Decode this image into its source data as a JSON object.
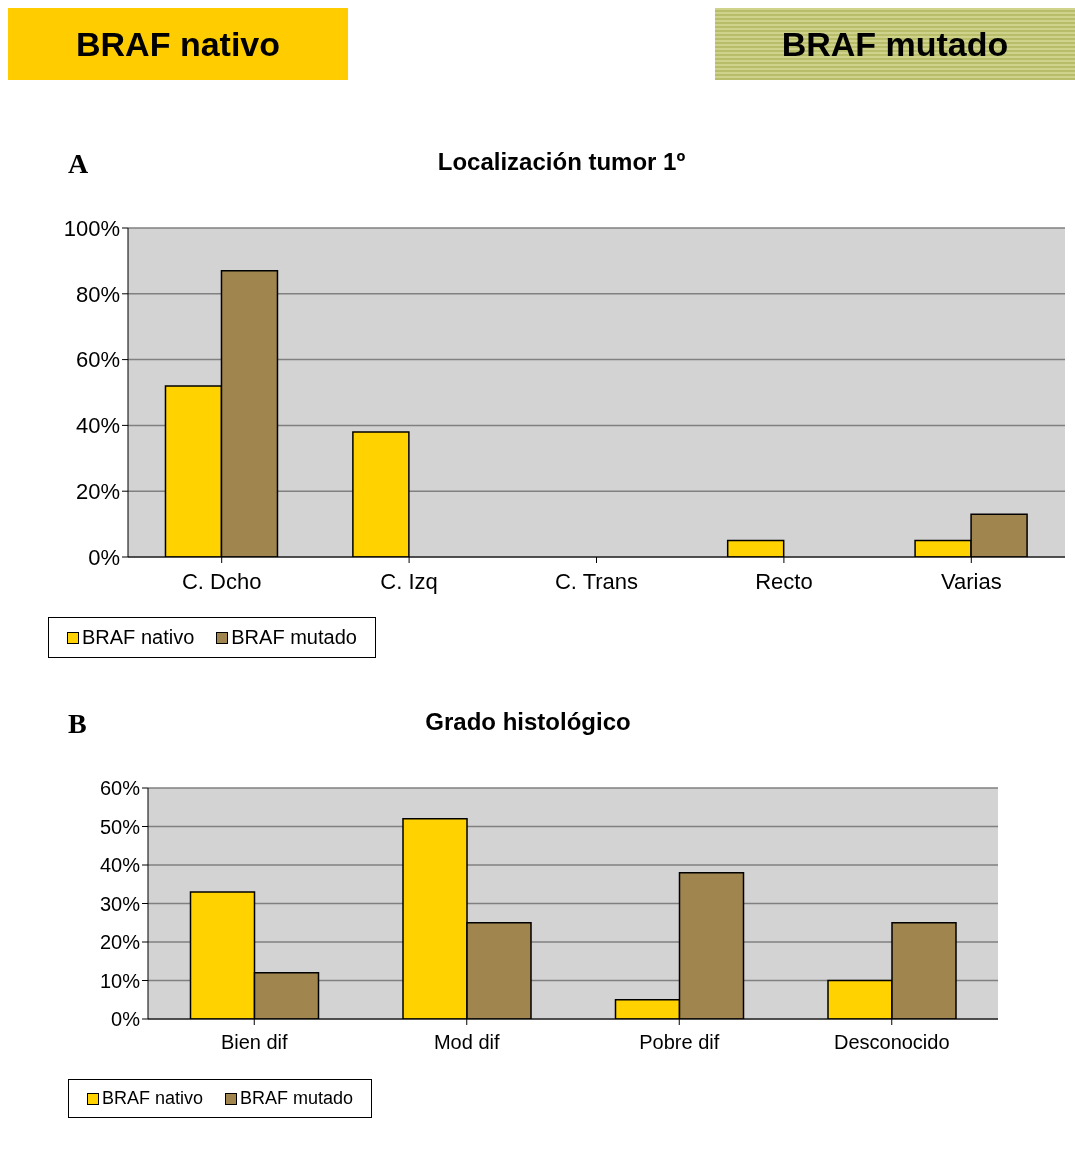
{
  "chart_data": [
    {
      "type": "bar",
      "title": "Localización tumor 1º",
      "categories": [
        "C. Dcho",
        "C. Izq",
        "C. Trans",
        "Recto",
        "Varias"
      ],
      "series": [
        {
          "name": "BRAF nativo",
          "color": "#ffd200",
          "values": [
            52,
            38,
            0,
            5,
            5
          ]
        },
        {
          "name": "BRAF mutado",
          "color": "#a0854e",
          "values": [
            87,
            0,
            0,
            0,
            13
          ]
        }
      ],
      "ylim": [
        0,
        100
      ],
      "yticks": [
        {
          "value": 0,
          "label": "0%"
        },
        {
          "value": 20,
          "label": "20%"
        },
        {
          "value": 40,
          "label": "40%"
        },
        {
          "value": 60,
          "label": "60%"
        },
        {
          "value": 80,
          "label": "80%"
        },
        {
          "value": 100,
          "label": "100%"
        }
      ],
      "grid": "y",
      "legend": "bottom",
      "annotations": [
        "BRAF nativo",
        "BRAF mutado",
        "A"
      ]
    },
    {
      "type": "bar",
      "title": "Grado histológico",
      "categories": [
        "Bien dif",
        "Mod dif",
        "Pobre dif",
        "Desconocido"
      ],
      "series": [
        {
          "name": "BRAF nativo",
          "color": "#ffd200",
          "values": [
            33,
            52,
            5,
            10
          ]
        },
        {
          "name": "BRAF mutado",
          "color": "#a0854e",
          "values": [
            12,
            25,
            38,
            25
          ]
        }
      ],
      "ylim": [
        0,
        60
      ],
      "yticks": [
        {
          "value": 0,
          "label": "0%"
        },
        {
          "value": 10,
          "label": "10%"
        },
        {
          "value": 20,
          "label": "20%"
        },
        {
          "value": 30,
          "label": "30%"
        },
        {
          "value": 40,
          "label": "40%"
        },
        {
          "value": 50,
          "label": "50%"
        },
        {
          "value": 60,
          "label": "60%"
        }
      ],
      "grid": "y",
      "legend": "bottom",
      "annotations": [
        "B"
      ]
    }
  ]
}
